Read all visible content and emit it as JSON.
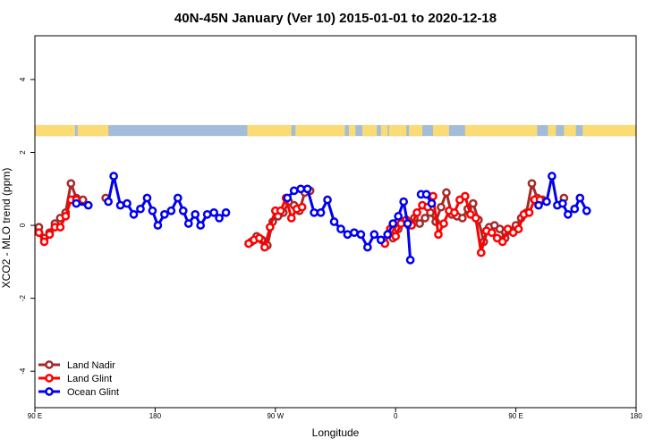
{
  "chart_data": {
    "type": "line",
    "title": "40N-45N January (Ver 10)   2015-01-01 to 2020-12-18",
    "xlabel": "Longitude",
    "ylabel": "XCO2 - MLO trend (ppm)",
    "xlim": [
      90,
      540
    ],
    "ylim": [
      -5,
      5.2
    ],
    "x_ticks": [
      {
        "value": 90,
        "label": "90 E"
      },
      {
        "value": 180,
        "label": "180"
      },
      {
        "value": 270,
        "label": "90 W"
      },
      {
        "value": 360,
        "label": "0"
      },
      {
        "value": 450,
        "label": "90 E"
      },
      {
        "value": 540,
        "label": "180"
      }
    ],
    "y_ticks": [
      {
        "value": -4,
        "label": "-4"
      },
      {
        "value": -2,
        "label": "-2"
      },
      {
        "value": 0,
        "label": "0"
      },
      {
        "value": 2,
        "label": "2"
      },
      {
        "value": 4,
        "label": "4"
      }
    ],
    "land_band": {
      "y_range": [
        2.45,
        2.75
      ],
      "land_color": "#fadb74",
      "ocean_color": "#a3bcd9",
      "land_intervals": [
        [
          90,
          120
        ],
        [
          122,
          145
        ],
        [
          249,
          282
        ],
        [
          285,
          322
        ],
        [
          325,
          330
        ],
        [
          335,
          346
        ],
        [
          349,
          354
        ],
        [
          355,
          368
        ],
        [
          370,
          380
        ],
        [
          388,
          400
        ],
        [
          412,
          466
        ],
        [
          474,
          480
        ],
        [
          486,
          495
        ],
        [
          500,
          540
        ]
      ]
    },
    "legend": {
      "position": "bottom-left",
      "entries": [
        {
          "name": "Land Nadir",
          "color": "#a52a2a"
        },
        {
          "name": "Land Glint",
          "color": "#ff0000"
        },
        {
          "name": "Ocean Glint",
          "color": "#0000ee"
        }
      ]
    },
    "series": [
      {
        "name": "Land Nadir",
        "color": "#a52a2a",
        "segments": [
          [
            [
              93,
              -0.05
            ],
            [
              97,
              -0.35
            ],
            [
              101,
              -0.2
            ],
            [
              105,
              0.05
            ],
            [
              109,
              0.2
            ],
            [
              113,
              0.35
            ],
            [
              117,
              1.15
            ],
            [
              121,
              0.75
            ],
            [
              126,
              0.7
            ]
          ],
          [
            [
              143,
              0.75
            ]
          ],
          [
            [
              252,
              -0.45
            ],
            [
              256,
              -0.3
            ],
            [
              260,
              -0.4
            ],
            [
              264,
              -0.55
            ],
            [
              268,
              0.1
            ],
            [
              272,
              0.25
            ],
            [
              276,
              0.35
            ],
            [
              280,
              0.65
            ],
            [
              284,
              0.55
            ],
            [
              288,
              0.4
            ],
            [
              292,
              0.9
            ],
            [
              296,
              0.95
            ]
          ],
          [
            [
              358,
              -0.35
            ],
            [
              362,
              -0.1
            ],
            [
              366,
              0.1
            ],
            [
              370,
              0.0
            ],
            [
              374,
              0.2
            ],
            [
              378,
              0.05
            ],
            [
              382,
              0.2
            ],
            [
              386,
              0.35
            ],
            [
              390,
              0.1
            ],
            [
              394,
              0.5
            ],
            [
              398,
              0.9
            ],
            [
              402,
              0.3
            ],
            [
              406,
              0.25
            ],
            [
              410,
              0.2
            ],
            [
              414,
              0.45
            ],
            [
              418,
              0.6
            ],
            [
              422,
              0.15
            ],
            [
              426,
              -0.45
            ],
            [
              430,
              -0.05
            ],
            [
              434,
              0.0
            ],
            [
              438,
              -0.1
            ],
            [
              442,
              -0.35
            ],
            [
              446,
              -0.15
            ],
            [
              450,
              0.0
            ],
            [
              454,
              0.2
            ],
            [
              458,
              0.35
            ],
            [
              462,
              1.15
            ],
            [
              466,
              0.75
            ],
            [
              470,
              0.7
            ]
          ],
          [
            [
              486,
              0.75
            ]
          ]
        ]
      },
      {
        "name": "Land Glint",
        "color": "#ff0000",
        "segments": [
          [
            [
              93,
              -0.2
            ],
            [
              97,
              -0.45
            ],
            [
              101,
              -0.25
            ],
            [
              105,
              -0.05
            ],
            [
              109,
              -0.05
            ],
            [
              113,
              0.25
            ],
            [
              117,
              0.7
            ],
            [
              121,
              0.7
            ]
          ],
          [
            [
              250,
              -0.5
            ],
            [
              254,
              -0.4
            ],
            [
              258,
              -0.35
            ],
            [
              262,
              -0.6
            ],
            [
              266,
              -0.05
            ],
            [
              270,
              0.4
            ],
            [
              274,
              0.4
            ],
            [
              278,
              0.75
            ],
            [
              282,
              0.2
            ],
            [
              286,
              0.45
            ],
            [
              290,
              0.5
            ]
          ],
          [
            [
              352,
              -0.5
            ],
            [
              356,
              -0.1
            ],
            [
              360,
              -0.3
            ],
            [
              364,
              0.05
            ],
            [
              368,
              0.15
            ],
            [
              372,
              0.0
            ],
            [
              376,
              0.35
            ],
            [
              380,
              0.55
            ],
            [
              384,
              0.5
            ],
            [
              388,
              0.8
            ],
            [
              392,
              -0.25
            ],
            [
              396,
              0.05
            ],
            [
              400,
              0.4
            ],
            [
              404,
              0.35
            ],
            [
              408,
              0.7
            ],
            [
              412,
              0.8
            ],
            [
              416,
              0.3
            ],
            [
              420,
              0.2
            ],
            [
              424,
              -0.75
            ],
            [
              428,
              -0.15
            ],
            [
              432,
              -0.2
            ],
            [
              436,
              -0.35
            ],
            [
              440,
              -0.45
            ],
            [
              444,
              -0.1
            ],
            [
              448,
              -0.2
            ],
            [
              452,
              -0.1
            ],
            [
              456,
              0.3
            ],
            [
              460,
              0.35
            ],
            [
              464,
              0.7
            ],
            [
              468,
              0.7
            ]
          ]
        ]
      },
      {
        "name": "Ocean Glint",
        "color": "#0000ee",
        "segments": [
          [
            [
              121,
              0.6
            ],
            [
              130,
              0.55
            ]
          ],
          [
            [
              145,
              0.65
            ],
            [
              149,
              1.35
            ],
            [
              154,
              0.55
            ],
            [
              159,
              0.6
            ],
            [
              164,
              0.3
            ],
            [
              169,
              0.45
            ],
            [
              174,
              0.75
            ],
            [
              178,
              0.4
            ],
            [
              182,
              0.0
            ],
            [
              187,
              0.3
            ],
            [
              192,
              0.4
            ],
            [
              197,
              0.75
            ],
            [
              201,
              0.4
            ],
            [
              205,
              0.05
            ],
            [
              210,
              0.3
            ],
            [
              214,
              0.0
            ],
            [
              219,
              0.3
            ],
            [
              224,
              0.35
            ],
            [
              228,
              0.2
            ],
            [
              233,
              0.35
            ]
          ],
          [
            [
              279,
              0.75
            ],
            [
              284,
              0.95
            ],
            [
              289,
              1.0
            ],
            [
              294,
              1.0
            ],
            [
              299,
              0.35
            ],
            [
              304,
              0.35
            ],
            [
              309,
              0.7
            ],
            [
              314,
              0.1
            ],
            [
              319,
              -0.1
            ],
            [
              324,
              -0.25
            ],
            [
              329,
              -0.2
            ],
            [
              334,
              -0.25
            ],
            [
              339,
              -0.6
            ],
            [
              344,
              -0.25
            ],
            [
              349,
              -0.4
            ],
            [
              354,
              -0.25
            ],
            [
              358,
              0.05
            ],
            [
              362,
              0.25
            ],
            [
              366,
              0.65
            ],
            [
              369,
              0.05
            ],
            [
              371,
              -0.95
            ]
          ],
          [
            [
              379,
              0.85
            ],
            [
              383,
              0.85
            ],
            [
              387,
              0.6
            ]
          ],
          [
            [
              467,
              0.55
            ],
            [
              473,
              0.65
            ],
            [
              477,
              1.35
            ],
            [
              481,
              0.55
            ],
            [
              485,
              0.6
            ],
            [
              489,
              0.3
            ],
            [
              494,
              0.45
            ],
            [
              498,
              0.75
            ],
            [
              503,
              0.4
            ]
          ]
        ]
      }
    ]
  }
}
